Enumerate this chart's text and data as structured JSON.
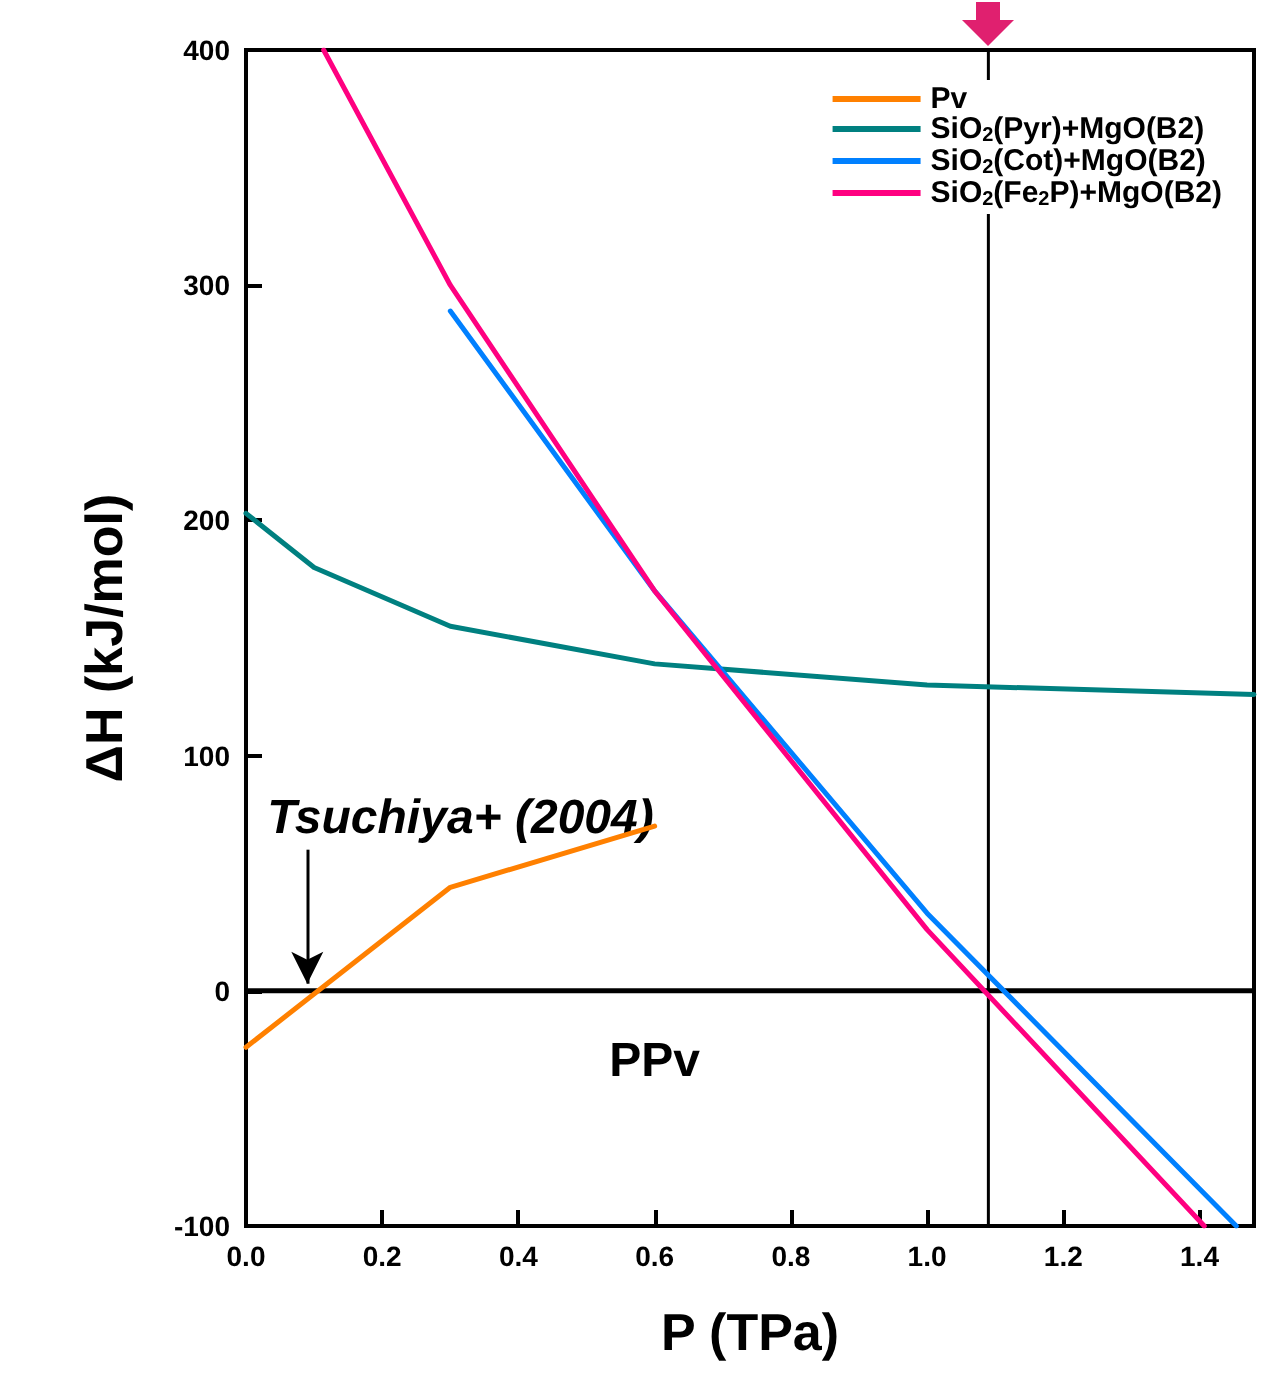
{
  "chart_data": {
    "type": "line",
    "xlabel": "P (TPa)",
    "ylabel": "ΔH (kJ/mol)",
    "xlim": [
      0,
      1.48
    ],
    "ylim": [
      -100,
      400
    ],
    "xticks": [
      {
        "value": 0,
        "label": "0.0"
      },
      {
        "value": 0.2,
        "label": "0.2"
      },
      {
        "value": 0.4,
        "label": "0.4"
      },
      {
        "value": 0.6,
        "label": "0.6"
      },
      {
        "value": 0.8,
        "label": "0.8"
      },
      {
        "value": 1,
        "label": "1.0"
      },
      {
        "value": 1.2,
        "label": "1.2"
      },
      {
        "value": 1.4,
        "label": "1.4"
      }
    ],
    "yticks": [
      -100,
      0,
      100,
      200,
      300,
      400
    ],
    "series": [
      {
        "name": "Pv",
        "color": "#ff8000",
        "x": [
          0,
          0.3,
          0.6
        ],
        "values": [
          -24,
          44,
          70
        ]
      },
      {
        "name": "SiO$_{2}$(Pyr)+MgO(B2)",
        "color": "#008080",
        "x": [
          0,
          0.1,
          0.3,
          0.6,
          1.0,
          1.48
        ],
        "values": [
          203,
          180,
          155,
          139,
          130,
          126
        ]
      },
      {
        "name": "SiO$_{2}$(Cot)+MgO(B2)",
        "color": "#0080ff",
        "x": [
          0.3,
          0.6,
          1.0,
          1.454
        ],
        "values": [
          289,
          170,
          33,
          -100
        ]
      },
      {
        "name": "SiO$_{2}$(Fe$_{2}$P)+MgO(B2)",
        "color": "#ff0080",
        "x": [
          0.114,
          0.3,
          0.6,
          1.0,
          1.407
        ],
        "values": [
          400,
          300,
          170,
          26,
          -100
        ]
      }
    ],
    "ref_lines": [
      {
        "axis": "y",
        "value": 0,
        "color": "#000000"
      },
      {
        "axis": "x",
        "value": 1.09,
        "color": "#000000"
      }
    ],
    "annotations": [
      {
        "text": "Tsuchiya+ (2004)",
        "x": 0.09,
        "y": 0
      },
      "PPv"
    ],
    "legend": "top right",
    "grid": false,
    "marker": "none",
    "line_style": "solid"
  }
}
